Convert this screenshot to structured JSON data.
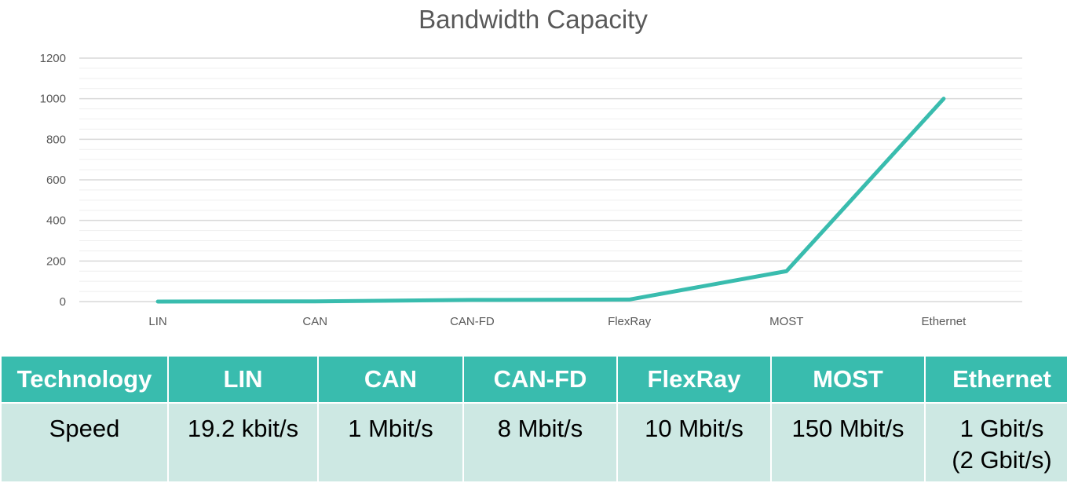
{
  "chart_data": {
    "type": "line",
    "title": "Bandwidth Capacity",
    "categories": [
      "LIN",
      "CAN",
      "CAN-FD",
      "FlexRay",
      "MOST",
      "Ethernet"
    ],
    "series": [
      {
        "values": [
          0.0192,
          1,
          8,
          10,
          150,
          1000
        ]
      }
    ],
    "ylim": [
      0,
      1200
    ],
    "yticks": [
      0,
      200,
      400,
      600,
      800,
      1000,
      1200
    ],
    "grid": true,
    "minor_grid": true,
    "line_color": "#39bcae"
  },
  "table": {
    "header": [
      "Technology",
      "LIN",
      "CAN",
      "CAN-FD",
      "FlexRay",
      "MOST",
      "Ethernet"
    ],
    "row": [
      [
        "Speed"
      ],
      [
        "19.2 kbit/s"
      ],
      [
        "1 Mbit/s"
      ],
      [
        "8 Mbit/s"
      ],
      [
        "10 Mbit/s"
      ],
      [
        "150 Mbit/s"
      ],
      [
        "1 Gbit/s",
        "(2 Gbit/s)"
      ]
    ],
    "header_color": "#39bcae",
    "cell_color": "#cde8e3"
  }
}
